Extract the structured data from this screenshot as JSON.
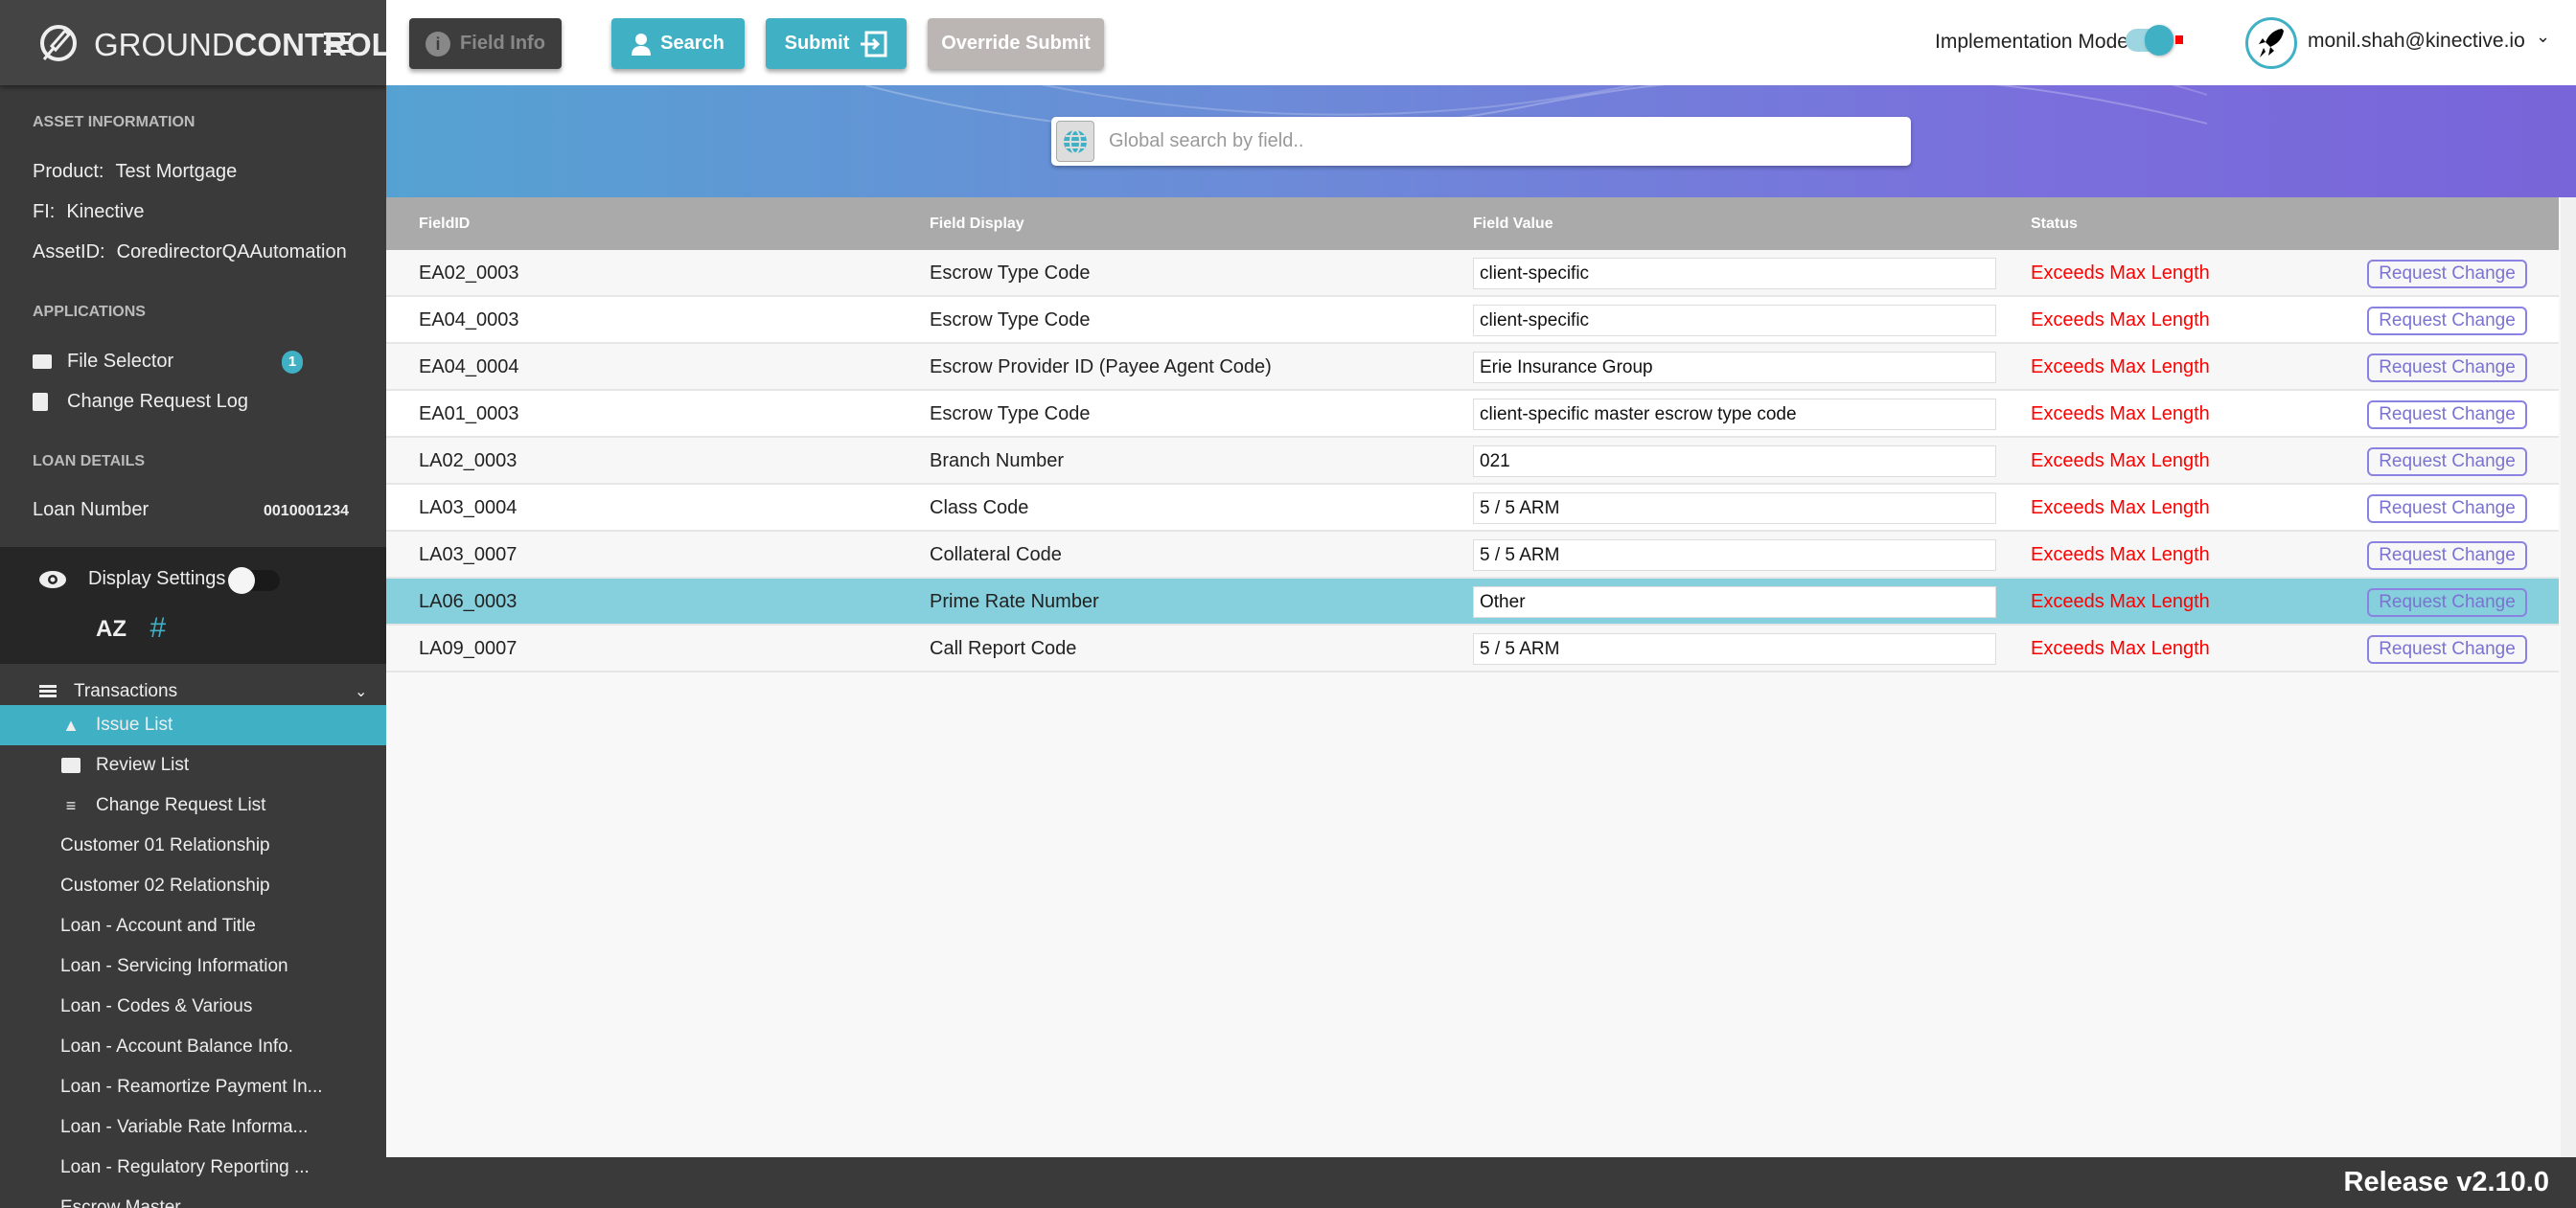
{
  "brand": {
    "name_light": "GROUND",
    "name_bold": "CONTROL"
  },
  "sidebar": {
    "asset_heading": "ASSET INFORMATION",
    "asset": [
      {
        "label": "Product:",
        "value": "Test Mortgage"
      },
      {
        "label": "FI:",
        "value": "Kinective"
      },
      {
        "label": "AssetID:",
        "value": "CoredirectorQAAutomation"
      }
    ],
    "applications_heading": "APPLICATIONS",
    "applications": [
      {
        "label": "File Selector",
        "icon": "folder-icon",
        "badge": "1"
      },
      {
        "label": "Change Request Log",
        "icon": "clipboard-icon"
      }
    ],
    "loan_heading": "LOAN DETAILS",
    "loan_number_label": "Loan Number",
    "loan_number": "0010001234",
    "display_settings": "Display Settings",
    "display_settings_on": false,
    "transactions": "Transactions",
    "lists": [
      {
        "label": "Issue List",
        "icon": "warning-icon",
        "active": true
      },
      {
        "label": "Review List",
        "icon": "review-icon"
      },
      {
        "label": "Change Request List",
        "icon": "checklist-icon"
      }
    ],
    "sections": [
      "Customer 01 Relationship",
      "Customer 02 Relationship",
      "Loan - Account and Title",
      "Loan - Servicing Information",
      "Loan - Codes & Various",
      "Loan - Account Balance Info.",
      "Loan - Reamortize Payment In...",
      "Loan - Variable Rate Informa...",
      "Loan - Regulatory Reporting ...",
      "Escrow Master"
    ]
  },
  "toolbar": {
    "field_info": "Field Info",
    "search": "Search",
    "submit": "Submit",
    "override_submit": "Override Submit",
    "implementation_mode": "Implementation Mode",
    "implementation_mode_on": true,
    "user": "monil.shah@kinective.io"
  },
  "search": {
    "placeholder": "Global search by field.."
  },
  "table": {
    "headers": [
      "FieldID",
      "Field Display",
      "Field Value",
      "Status"
    ],
    "action_label": "Request Change",
    "rows": [
      {
        "id": "EA02_0003",
        "display": "Escrow Type Code",
        "value": "client-specific",
        "status": "Exceeds Max Length"
      },
      {
        "id": "EA04_0003",
        "display": "Escrow Type Code",
        "value": "client-specific",
        "status": "Exceeds Max Length"
      },
      {
        "id": "EA04_0004",
        "display": "Escrow Provider ID (Payee Agent Code)",
        "value": "Erie Insurance Group",
        "status": "Exceeds Max Length"
      },
      {
        "id": "EA01_0003",
        "display": "Escrow Type Code",
        "value": "client-specific master escrow type code",
        "status": "Exceeds Max Length"
      },
      {
        "id": "LA02_0003",
        "display": "Branch Number",
        "value": "021",
        "status": "Exceeds Max Length"
      },
      {
        "id": "LA03_0004",
        "display": "Class Code",
        "value": "5 / 5 ARM",
        "status": "Exceeds Max Length"
      },
      {
        "id": "LA03_0007",
        "display": "Collateral Code",
        "value": "5 / 5 ARM",
        "status": "Exceeds Max Length"
      },
      {
        "id": "LA06_0003",
        "display": "Prime Rate Number",
        "value": "Other",
        "status": "Exceeds Max Length",
        "selected": true
      },
      {
        "id": "LA09_0007",
        "display": "Call Report Code",
        "value": "5 / 5 ARM",
        "status": "Exceeds Max Length"
      }
    ]
  },
  "footer": {
    "release": "Release v2.10.0"
  },
  "colors": {
    "accent": "#40b0c5",
    "status_error": "#ff0000",
    "request_change": "#8a82e0",
    "sidebar": "#3a3a3a"
  }
}
